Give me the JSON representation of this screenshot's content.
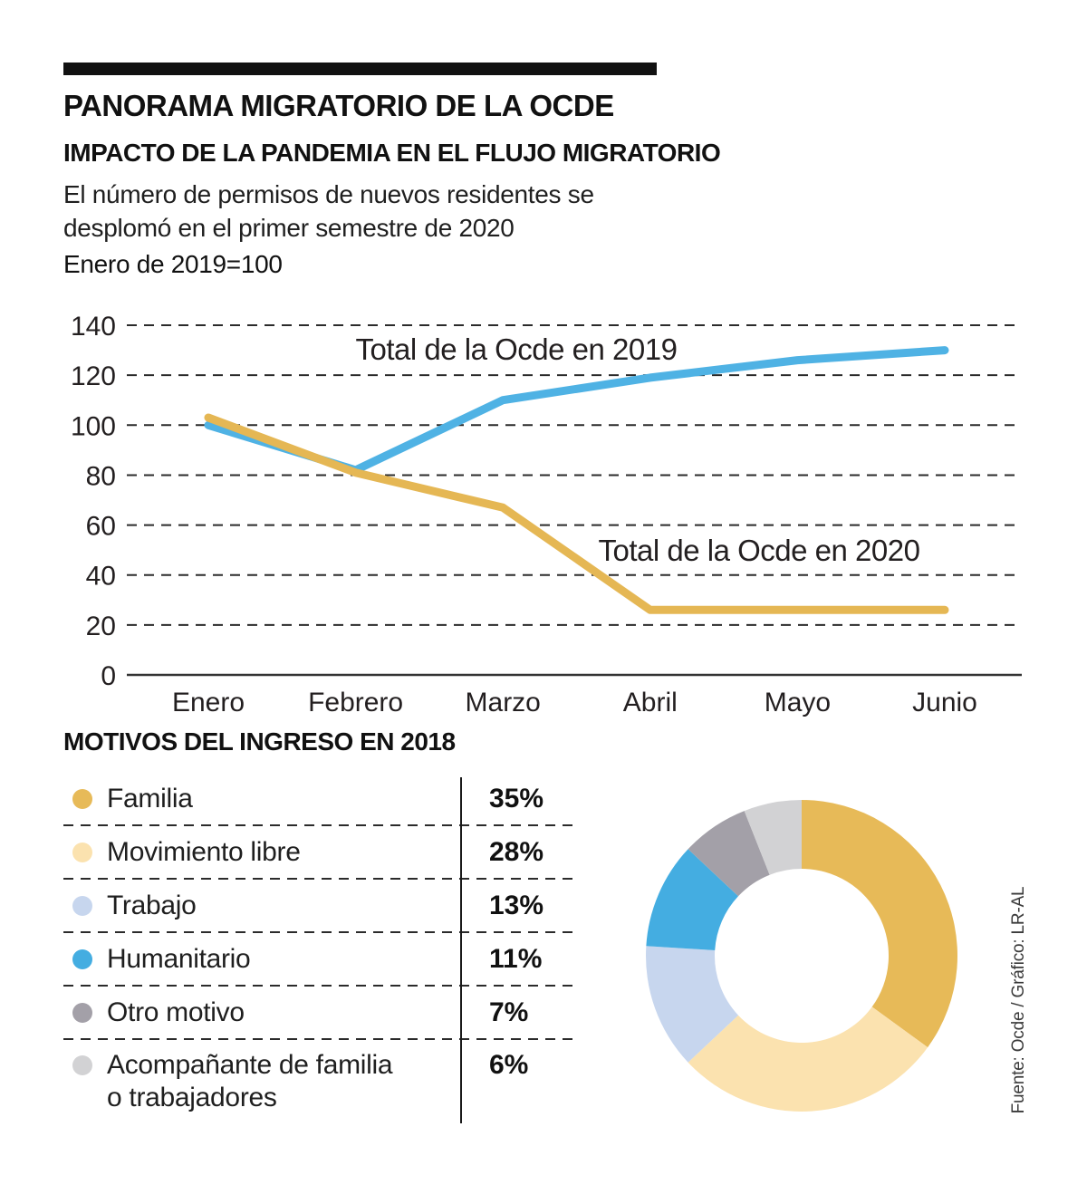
{
  "header": {
    "title": "PANORAMA MIGRATORIO DE LA OCDE",
    "subtitle": "IMPACTO DE LA PANDEMIA EN EL FLUJO MIGRATORIO",
    "description_line1": "El número de permisos de nuevos residentes se",
    "description_line2": "desplomó en el primer semestre de 2020",
    "index_note": "Enero de 2019=100"
  },
  "chart_data": [
    {
      "type": "line",
      "title": "IMPACTO DE LA PANDEMIA EN EL FLUJO MIGRATORIO",
      "subtitle": "Enero de 2019=100",
      "categories": [
        "Enero",
        "Febrero",
        "Marzo",
        "Abril",
        "Mayo",
        "Junio"
      ],
      "series": [
        {
          "name": "Total de la Ocde en 2019",
          "color": "#4FB2E4",
          "values": [
            100,
            82,
            110,
            119,
            126,
            130
          ]
        },
        {
          "name": "Total de la Ocde en 2020",
          "color": "#E5B754",
          "values": [
            103,
            81,
            67,
            26,
            26,
            26
          ]
        }
      ],
      "ylim": [
        0,
        140
      ],
      "yticks": [
        0,
        20,
        40,
        60,
        80,
        100,
        120,
        140
      ],
      "grid": "horizontal-dashed",
      "legend_position": "inline-labels"
    },
    {
      "type": "pie",
      "donut": true,
      "title": "MOTIVOS DEL INGRESO EN 2018",
      "start_angle_deg": 0,
      "direction": "clockwise",
      "segments": [
        {
          "label": "Familia",
          "value": 35,
          "pct_label": "35%",
          "color": "#E7BA58"
        },
        {
          "label": "Movimiento libre",
          "value": 28,
          "pct_label": "28%",
          "color": "#FBE2AF"
        },
        {
          "label": "Trabajo",
          "value": 13,
          "pct_label": "13%",
          "color": "#C7D6EE"
        },
        {
          "label": "Humanitario",
          "value": 11,
          "pct_label": "11%",
          "color": "#44ADE1"
        },
        {
          "label": "Otro motivo",
          "value": 7,
          "pct_label": "7%",
          "color": "#A3A0A8"
        },
        {
          "label": "Acompañante de familia o trabajadores",
          "value": 6,
          "pct_label": "6%",
          "color": "#D2D2D4"
        }
      ]
    }
  ],
  "colors": {
    "rule": "#111111",
    "text": "#1a1a1a",
    "grid": "#2b2b2b"
  },
  "source": "Fuente: Ocde / Gráfico: LR-AL"
}
